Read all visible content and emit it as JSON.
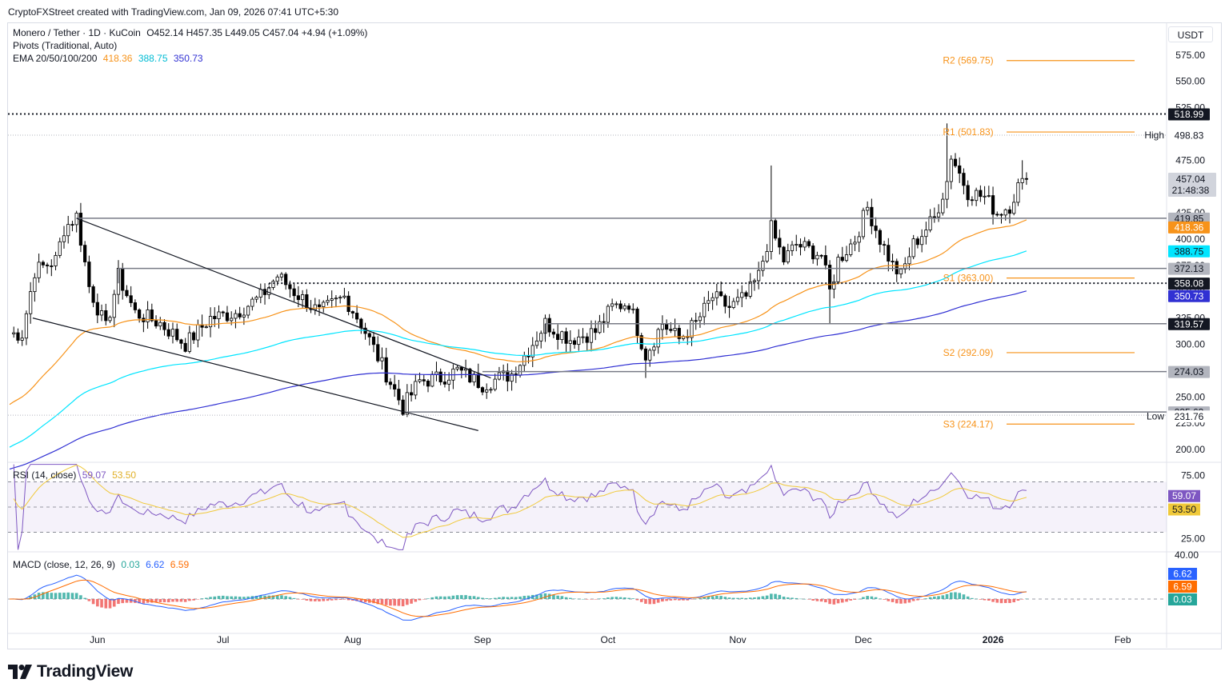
{
  "header": {
    "text": "CryptoFXStreet created with TradingView.com, Jan 09, 2026 07:41 UTC+5:30"
  },
  "brand": {
    "logo_text": "TradingView",
    "logo_icon": "tradingview-logo-icon"
  },
  "legend": {
    "symbol": "Monero / Tether · 1D · KuCoin",
    "ohlc": "O452.14  H457.35  L449.05  C457.04  +4.94 (+1.09%)",
    "pivots": "Pivots (Traditional, Auto)",
    "ema_label": "EMA 20/50/100/200",
    "ema_values": [
      "418.36",
      "388.75",
      "350.73"
    ]
  },
  "currency": "USDT",
  "colors": {
    "up": "#ffffff",
    "down": "#000000",
    "candle_border": "#000000",
    "ema50": "#f7931a",
    "ema100": "#00e5ff",
    "ema200": "#3131d3",
    "pivot": "#f7931a",
    "rsi": "#7e57c2",
    "rsi_ma": "#f0c93a",
    "macd": "#2962ff",
    "signal": "#ff6d00",
    "hist_up": "#26a69a",
    "hist_down": "#ef5350"
  },
  "chart_data": [
    {
      "type": "candlestick",
      "series_note": "XMR/USDT daily",
      "xaxis_labels": [
        "Jun",
        "Jul",
        "Aug",
        "Sep",
        "Oct",
        "Nov",
        "Dec",
        "2026",
        "Feb"
      ],
      "yaxis_ticks": [
        "575.00",
        "550.00",
        "525.00",
        "500.00",
        "475.00",
        "450.00",
        "425.00",
        "400.00",
        "375.00",
        "350.00",
        "325.00",
        "300.00",
        "275.00",
        "250.00",
        "225.00",
        "200.00"
      ],
      "ylim": [
        190,
        590
      ],
      "keypoints": [
        [
          "2025-05-14",
          310
        ],
        [
          "2025-05-17",
          370
        ],
        [
          "2025-05-22",
          380
        ],
        [
          "2025-05-24",
          410
        ],
        [
          "2025-05-27",
          422
        ],
        [
          "2025-05-30",
          355
        ],
        [
          "2025-06-03",
          315
        ],
        [
          "2025-06-06",
          365
        ],
        [
          "2025-06-10",
          330
        ],
        [
          "2025-06-16",
          320
        ],
        [
          "2025-06-22",
          300
        ],
        [
          "2025-06-28",
          325
        ],
        [
          "2025-07-04",
          330
        ],
        [
          "2025-07-10",
          345
        ],
        [
          "2025-07-14",
          365
        ],
        [
          "2025-07-18",
          350
        ],
        [
          "2025-07-24",
          330
        ],
        [
          "2025-07-30",
          345
        ],
        [
          "2025-08-03",
          320
        ],
        [
          "2025-08-08",
          280
        ],
        [
          "2025-08-13",
          240
        ],
        [
          "2025-08-17",
          265
        ],
        [
          "2025-08-22",
          268
        ],
        [
          "2025-08-26",
          275
        ],
        [
          "2025-09-01",
          262
        ],
        [
          "2025-09-08",
          272
        ],
        [
          "2025-09-12",
          295
        ],
        [
          "2025-09-16",
          320
        ],
        [
          "2025-09-22",
          305
        ],
        [
          "2025-09-28",
          312
        ],
        [
          "2025-10-02",
          335
        ],
        [
          "2025-10-06",
          340
        ],
        [
          "2025-10-10",
          290
        ],
        [
          "2025-10-14",
          320
        ],
        [
          "2025-10-18",
          305
        ],
        [
          "2025-10-22",
          320
        ],
        [
          "2025-10-26",
          345
        ],
        [
          "2025-10-30",
          335
        ],
        [
          "2025-11-03",
          345
        ],
        [
          "2025-11-06",
          365
        ],
        [
          "2025-11-09",
          410
        ],
        [
          "2025-11-12",
          380
        ],
        [
          "2025-11-15",
          395
        ],
        [
          "2025-11-18",
          390
        ],
        [
          "2025-11-21",
          385
        ],
        [
          "2025-11-23",
          350
        ],
        [
          "2025-11-25",
          380
        ],
        [
          "2025-11-29",
          400
        ],
        [
          "2025-12-02",
          430
        ],
        [
          "2025-12-05",
          400
        ],
        [
          "2025-12-08",
          375
        ],
        [
          "2025-12-10",
          365
        ],
        [
          "2025-12-13",
          395
        ],
        [
          "2025-12-18",
          420
        ],
        [
          "2025-12-21",
          455
        ],
        [
          "2025-12-22",
          480
        ],
        [
          "2025-12-26",
          445
        ],
        [
          "2025-12-30",
          440
        ],
        [
          "2026-01-02",
          425
        ],
        [
          "2026-01-05",
          432
        ],
        [
          "2026-01-07",
          450
        ],
        [
          "2026-01-08",
          452
        ],
        [
          "2026-01-09",
          457
        ]
      ],
      "high": "498.83",
      "low": "231.76",
      "last_price": "457.04",
      "countdown": "21:48:38",
      "pivot_levels": [
        {
          "label": "R2",
          "value": 569.75,
          "text": "R2 (569.75)"
        },
        {
          "label": "R1",
          "value": 501.83,
          "text": "R1 (501.83)"
        },
        {
          "label": "S1",
          "value": 363.0,
          "text": "S1 (363.00)"
        },
        {
          "label": "S2",
          "value": 292.09,
          "text": "S2 (292.09)"
        },
        {
          "label": "S3",
          "value": 224.17,
          "text": "S3 (224.17)"
        }
      ],
      "horizontal_levels": [
        {
          "value": 518.99,
          "text": "518.99",
          "style": "dotted"
        },
        {
          "value": 419.85,
          "text": "419.85",
          "style": "solid"
        },
        {
          "value": 372.13,
          "text": "372.13",
          "style": "solid"
        },
        {
          "value": 358.08,
          "text": "358.08",
          "style": "dotted"
        },
        {
          "value": 319.57,
          "text": "319.57",
          "style": "solid"
        },
        {
          "value": 274.03,
          "text": "274.03",
          "style": "solid"
        },
        {
          "value": 235.63,
          "text": "235.63",
          "style": "solid"
        }
      ],
      "price_labels": {
        "high": "High",
        "low": "Low"
      },
      "ema_last": {
        "ema50": 418.36,
        "ema100": 388.75,
        "ema200": 350.73
      }
    },
    {
      "type": "line",
      "name": "RSI",
      "legend_text": "RSI (14, close)",
      "values_text": [
        "59.07",
        "53.50"
      ],
      "ylim": [
        15,
        85
      ],
      "yaxis_ticks": [
        "75.00",
        "25.00"
      ],
      "bands": [
        70,
        50,
        30
      ]
    },
    {
      "type": "line",
      "name": "MACD",
      "legend_text": "MACD (close, 12, 26, 9)",
      "values_text": [
        "0.03",
        "6.62",
        "6.59"
      ],
      "yaxis_ticks": [
        "40.00"
      ]
    }
  ]
}
